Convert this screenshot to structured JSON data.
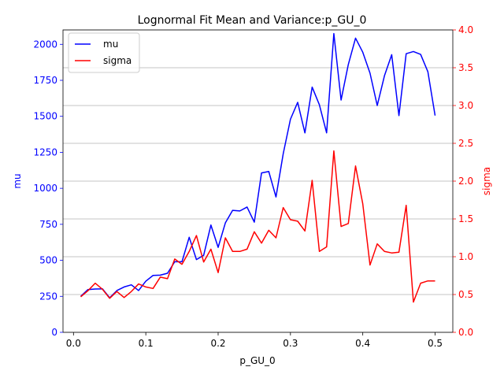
{
  "chart_data": {
    "type": "line",
    "title": "Lognormal Fit Mean and Variance:p_GU_0",
    "xlabel": "p_GU_0",
    "ylabel_left": "mu",
    "ylabel_right": "sigma",
    "xlim": [
      -0.0145,
      0.5245
    ],
    "ylim_left": [
      0,
      2100
    ],
    "ylim_right": [
      0,
      4.0
    ],
    "x_ticks": [
      0.0,
      0.1,
      0.2,
      0.3,
      0.4,
      0.5
    ],
    "x_tick_labels": [
      "0.0",
      "0.1",
      "0.2",
      "0.3",
      "0.4",
      "0.5"
    ],
    "y_left_ticks": [
      0,
      250,
      500,
      750,
      1000,
      1250,
      1500,
      1750,
      2000
    ],
    "y_left_tick_labels": [
      "0",
      "250",
      "500",
      "750",
      "1000",
      "1250",
      "1500",
      "1750",
      "2000"
    ],
    "y_right_ticks": [
      0.0,
      0.5,
      1.0,
      1.5,
      2.0,
      2.5,
      3.0,
      3.5,
      4.0
    ],
    "y_right_tick_labels": [
      "0.0",
      "0.5",
      "1.0",
      "1.5",
      "2.0",
      "2.5",
      "3.0",
      "3.5",
      "4.0"
    ],
    "grid": "horizontal lines at right-axis ticks",
    "legend_position": "upper-left",
    "colors": {
      "mu": "#0000ff",
      "sigma": "#ff0000",
      "grid": "#b0b0b0",
      "frame": "#000000"
    },
    "x": [
      0.01,
      0.02,
      0.03,
      0.04,
      0.05,
      0.06,
      0.07,
      0.08,
      0.09,
      0.1,
      0.11,
      0.12,
      0.13,
      0.14,
      0.15,
      0.16,
      0.17,
      0.18,
      0.19,
      0.2,
      0.21,
      0.22,
      0.23,
      0.24,
      0.25,
      0.26,
      0.27,
      0.28,
      0.29,
      0.3,
      0.31,
      0.32,
      0.33,
      0.34,
      0.35,
      0.36,
      0.37,
      0.38,
      0.39,
      0.4,
      0.41,
      0.42,
      0.43,
      0.44,
      0.45,
      0.46,
      0.47,
      0.48,
      0.49,
      0.5
    ],
    "series": [
      {
        "name": "mu",
        "axis": "left",
        "color": "#0000ff",
        "values": [
          250,
          297,
          301,
          302,
          240,
          290,
          315,
          330,
          290,
          355,
          395,
          397,
          410,
          490,
          490,
          660,
          505,
          535,
          745,
          590,
          760,
          847,
          843,
          870,
          765,
          1107,
          1117,
          940,
          1240,
          1480,
          1597,
          1385,
          1703,
          1580,
          1385,
          2075,
          1613,
          1860,
          2043,
          1945,
          1800,
          1575,
          1782,
          1928,
          1505,
          1935,
          1950,
          1930,
          1810,
          1505
        ]
      },
      {
        "name": "sigma",
        "axis": "right",
        "color": "#ff0000",
        "values": [
          0.47,
          0.55,
          0.65,
          0.57,
          0.45,
          0.54,
          0.46,
          0.54,
          0.64,
          0.6,
          0.58,
          0.73,
          0.71,
          0.97,
          0.9,
          1.07,
          1.28,
          0.93,
          1.1,
          0.79,
          1.25,
          1.07,
          1.07,
          1.1,
          1.33,
          1.18,
          1.35,
          1.25,
          1.65,
          1.49,
          1.47,
          1.34,
          2.01,
          1.07,
          1.13,
          2.4,
          1.4,
          1.44,
          2.2,
          1.7,
          0.89,
          1.17,
          1.07,
          1.05,
          1.06,
          1.68,
          0.4,
          0.65,
          0.68,
          0.68
        ]
      }
    ]
  }
}
